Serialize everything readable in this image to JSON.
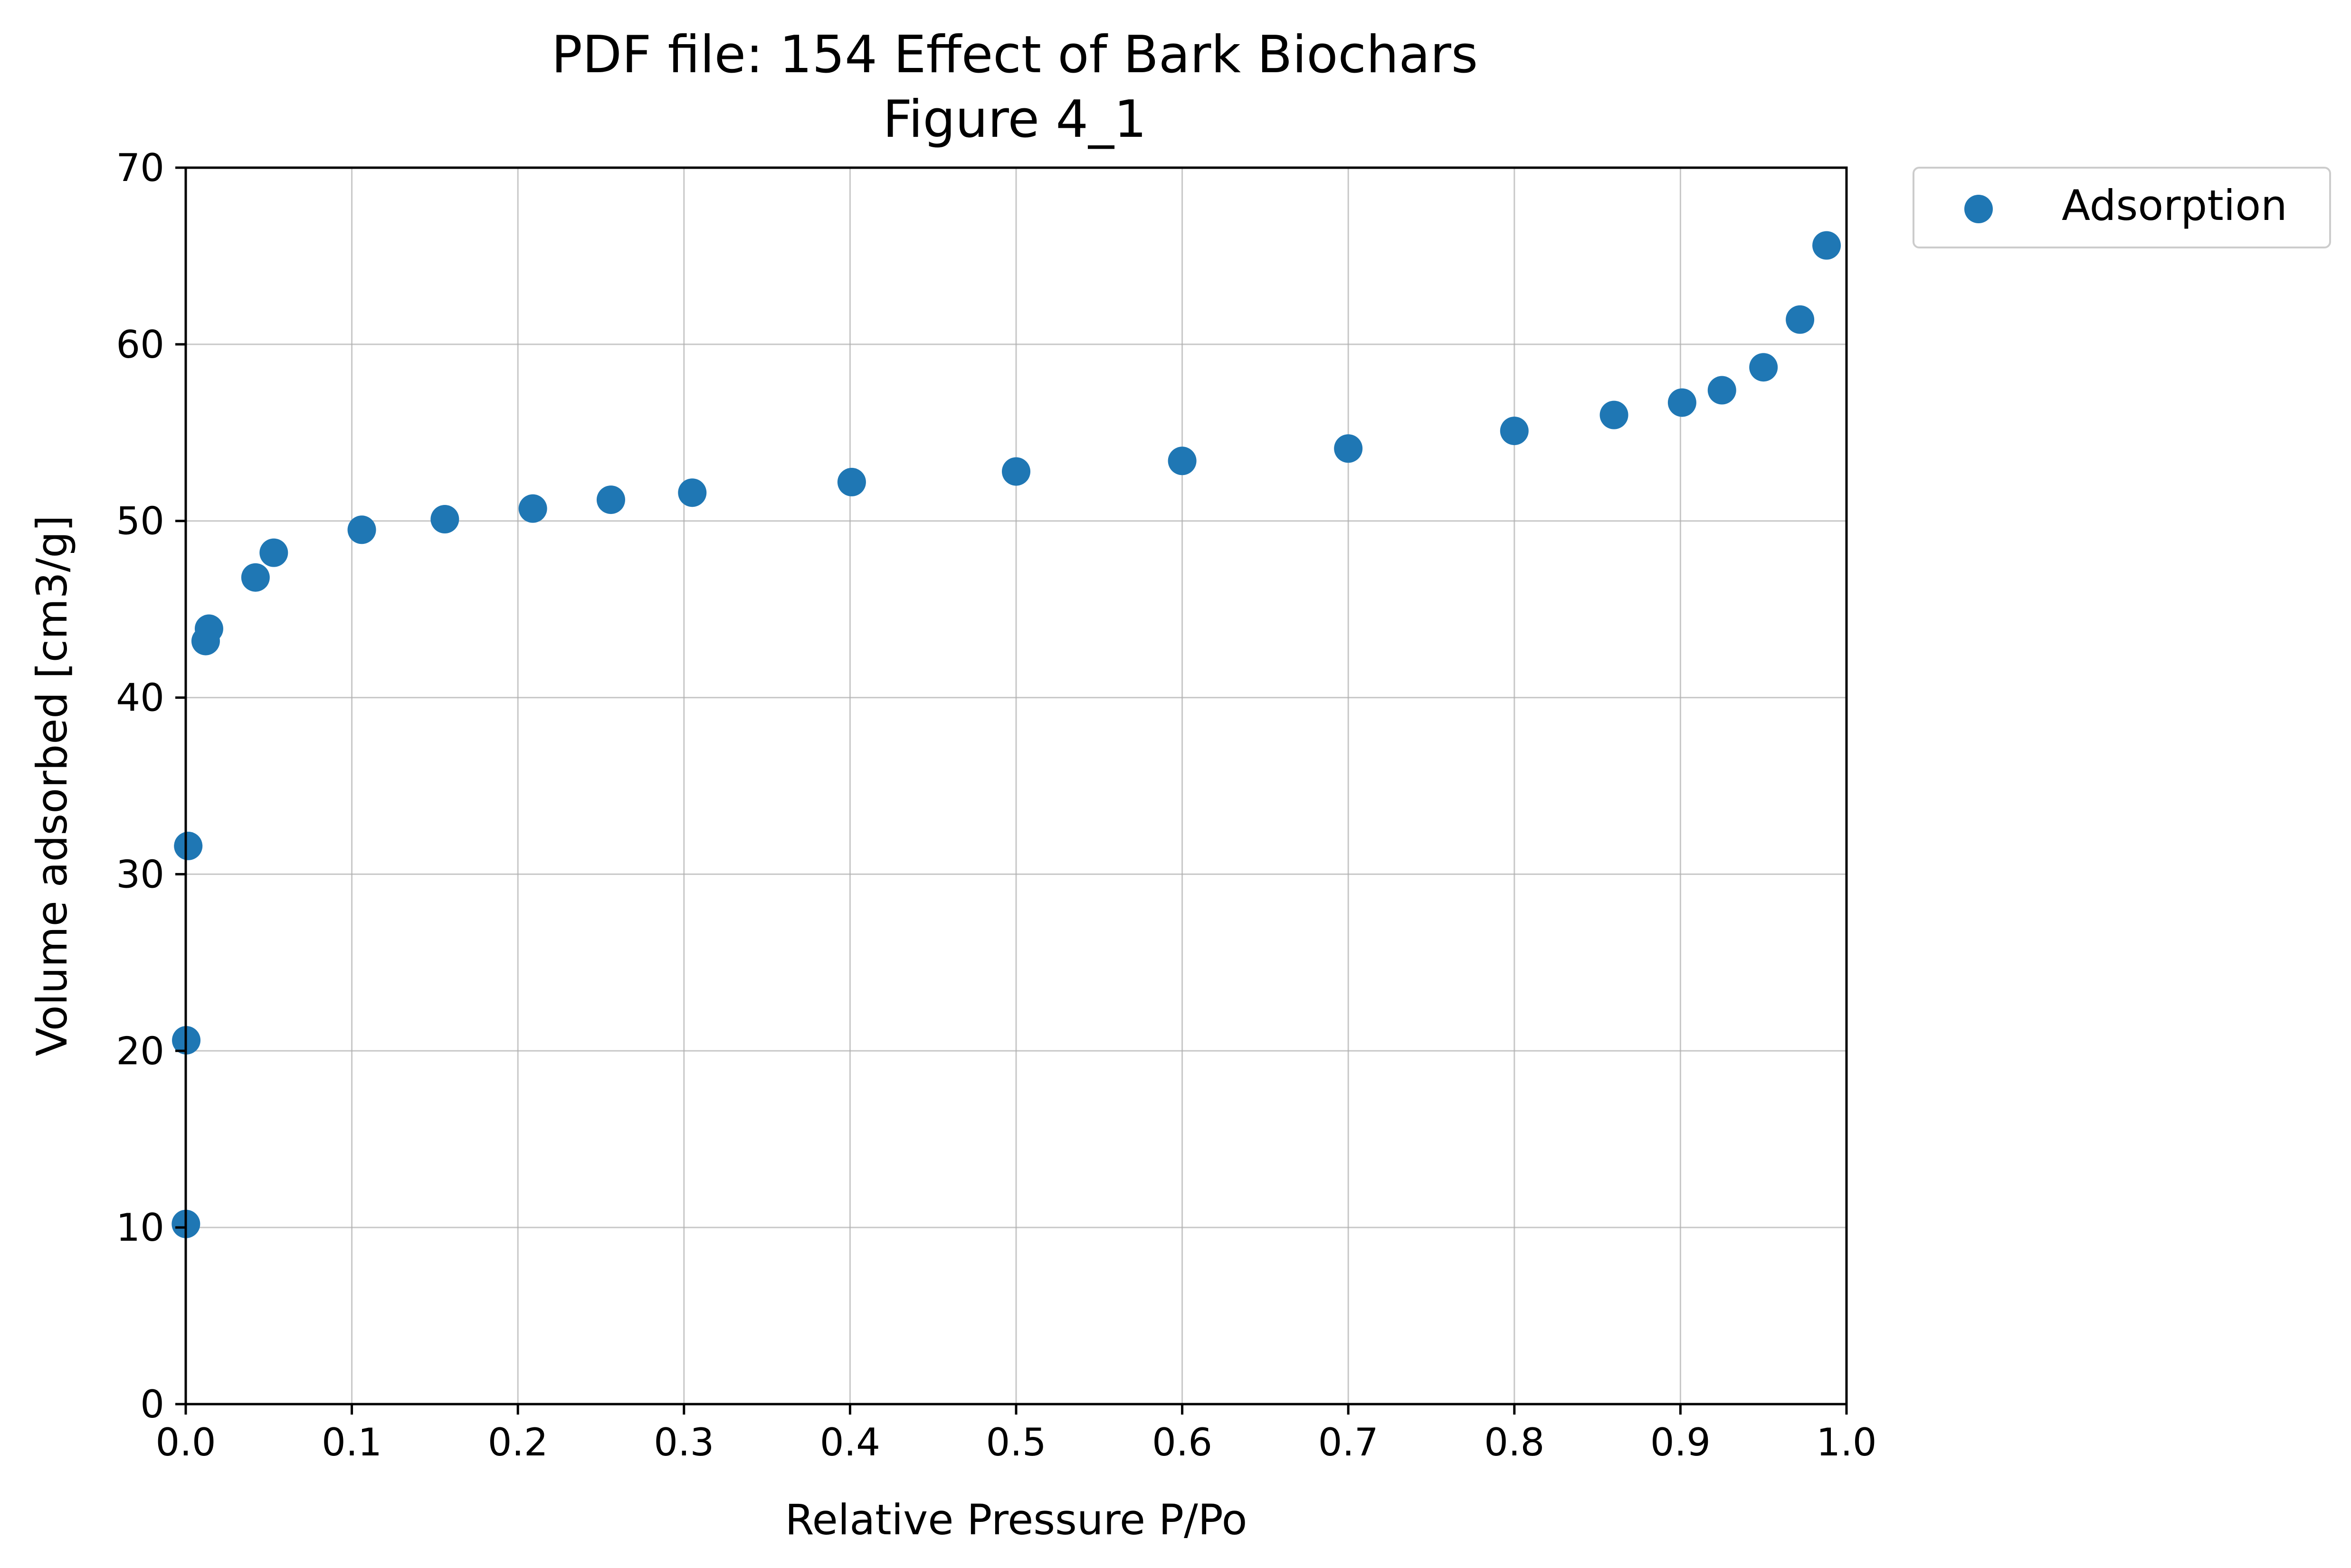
{
  "chart_data": {
    "type": "scatter",
    "title": "PDF file: 154 Effect of Bark Biochars",
    "subtitle": "Figure 4_1",
    "xlabel": "Relative Pressure P/Po",
    "ylabel": "Volume adsorbed [cm3/g]",
    "xlim": [
      0,
      1
    ],
    "ylim": [
      0,
      70
    ],
    "xticks": [
      "0.0",
      "0.1",
      "0.2",
      "0.3",
      "0.4",
      "0.5",
      "0.6",
      "0.7",
      "0.8",
      "0.9",
      "1.0"
    ],
    "yticks": [
      "0",
      "10",
      "20",
      "30",
      "40",
      "50",
      "60",
      "70"
    ],
    "grid": true,
    "legend": "outside-top-right",
    "series": [
      {
        "name": "Adsorption",
        "color": "#1f77b4",
        "x": [
          0.0001,
          0.0003,
          0.0015,
          0.012,
          0.014,
          0.042,
          0.053,
          0.106,
          0.156,
          0.209,
          0.256,
          0.305,
          0.401,
          0.5,
          0.6,
          0.7,
          0.8,
          0.86,
          0.901,
          0.925,
          0.95,
          0.972,
          0.988
        ],
        "y": [
          10.2,
          20.6,
          31.6,
          43.2,
          43.9,
          46.8,
          48.2,
          49.5,
          50.1,
          50.7,
          51.2,
          51.6,
          52.2,
          52.8,
          53.4,
          54.1,
          55.1,
          56.0,
          56.7,
          57.4,
          58.7,
          61.4,
          65.6
        ]
      }
    ]
  }
}
